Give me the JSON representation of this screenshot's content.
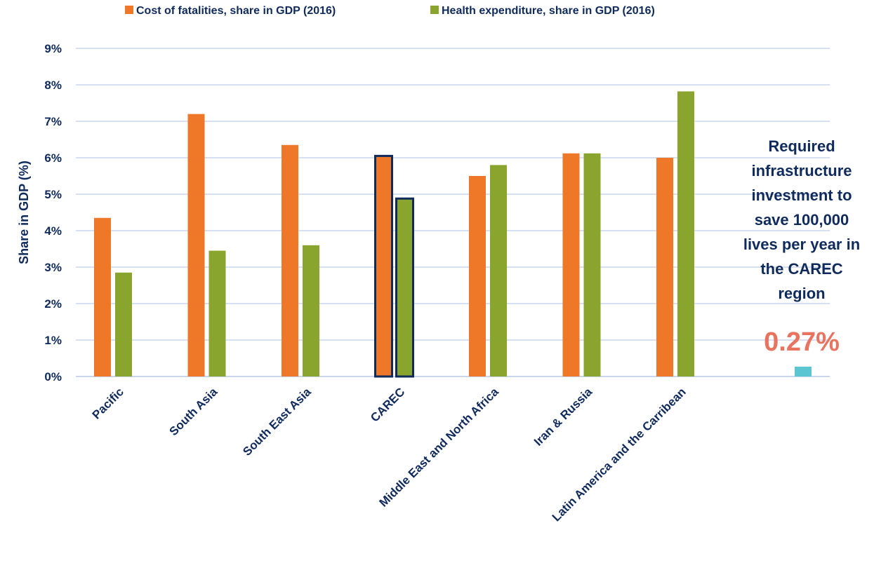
{
  "chart_data": {
    "type": "bar",
    "categories": [
      "Pacific",
      "South Asia",
      "South East Asia",
      "CAREC",
      "Middle East and North Africa",
      "Iran & Russia",
      "Latin America and the Carribean"
    ],
    "series": [
      {
        "name": "Cost of fatalities, share in GDP (2016)",
        "color": "#ee7728",
        "values": [
          4.35,
          7.2,
          6.35,
          6.05,
          5.5,
          6.12,
          6.0
        ]
      },
      {
        "name": "Health expenditure, share in GDP (2016)",
        "color": "#8aa52d",
        "values": [
          2.85,
          3.45,
          3.6,
          4.88,
          5.8,
          6.12,
          7.82
        ]
      }
    ],
    "highlight_category": "CAREC",
    "highlight_color": "#0f2a5c",
    "ylabel": "Share in GDP (%)",
    "ylim": [
      0,
      9
    ],
    "yticks": [
      "0%",
      "1%",
      "2%",
      "3%",
      "4%",
      "5%",
      "6%",
      "7%",
      "8%",
      "9%"
    ],
    "grid": true,
    "legend_position": "top",
    "annotation": {
      "lines": [
        "Required",
        "infrastructure",
        "investment to",
        "save 100,000",
        "lives per year in",
        "the CAREC",
        "region"
      ],
      "value_label": "0.27%",
      "value": 0.27,
      "value_color": "#e8735e",
      "bar_color": "#5bc5d2"
    }
  }
}
